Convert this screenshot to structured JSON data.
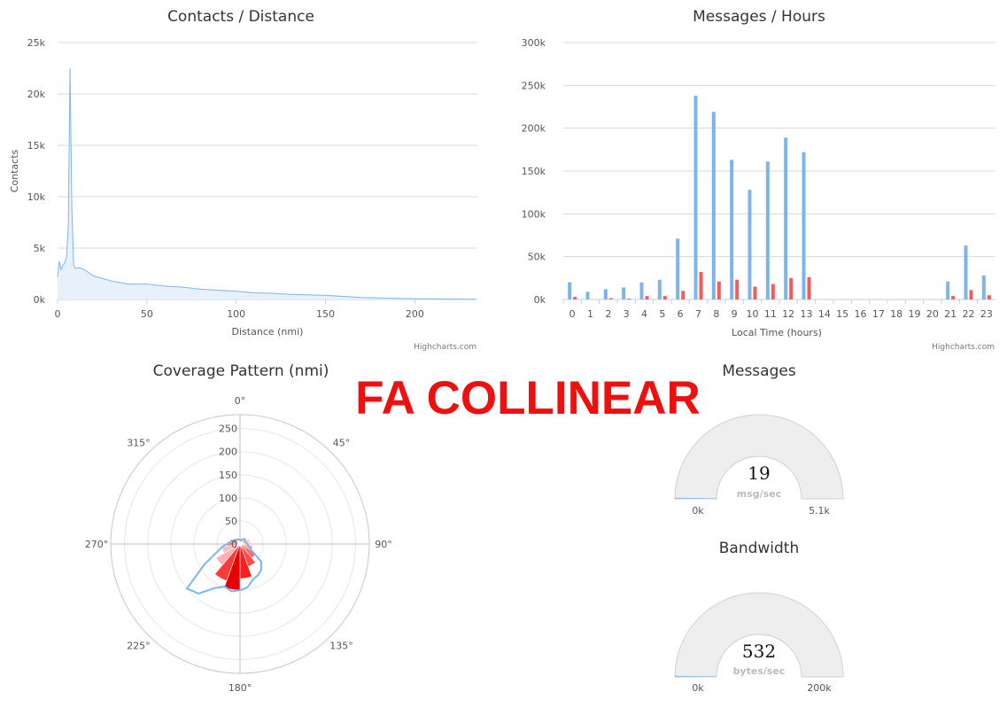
{
  "overlay": {
    "title": "FA COLLINEAR"
  },
  "credits": {
    "left": "Highcharts.com",
    "right": "Highcharts.com"
  },
  "chart_data": [
    {
      "id": "contacts",
      "type": "area",
      "title": "Contacts / Distance",
      "xlabel": "Distance (nmi)",
      "ylabel": "Contacts",
      "xlim": [
        0,
        235
      ],
      "ylim": [
        0,
        25000
      ],
      "x_ticks": [
        0,
        50,
        100,
        150,
        200
      ],
      "y_ticks": [
        0,
        5000,
        10000,
        15000,
        20000,
        25000
      ],
      "x_tick_labels": [
        "0",
        "50",
        "100",
        "150",
        "200"
      ],
      "y_tick_labels": [
        "0k",
        "5k",
        "10k",
        "15k",
        "20k",
        "25k"
      ],
      "grid": true,
      "color": "#7cb5ec",
      "x": [
        0,
        1,
        2,
        3,
        4,
        5,
        6,
        7,
        8,
        9,
        10,
        12,
        15,
        20,
        30,
        40,
        50,
        60,
        70,
        80,
        90,
        100,
        110,
        120,
        130,
        140,
        150,
        160,
        170,
        180,
        190,
        200,
        210,
        220,
        230,
        234
      ],
      "y": [
        2200,
        3700,
        2900,
        3300,
        3600,
        4100,
        7000,
        22500,
        9000,
        3300,
        3000,
        3100,
        2900,
        2300,
        1800,
        1500,
        1500,
        1300,
        1200,
        1000,
        900,
        800,
        650,
        600,
        500,
        450,
        400,
        300,
        200,
        150,
        100,
        80,
        60,
        40,
        30,
        20
      ]
    },
    {
      "id": "messages-hours",
      "type": "bar",
      "title": "Messages / Hours",
      "xlabel": "Local Time (hours)",
      "ylabel": "",
      "categories": [
        "0",
        "1",
        "2",
        "3",
        "4",
        "5",
        "6",
        "7",
        "8",
        "9",
        "10",
        "11",
        "12",
        "13",
        "14",
        "15",
        "16",
        "17",
        "18",
        "19",
        "20",
        "21",
        "22",
        "23"
      ],
      "ylim": [
        0,
        300000
      ],
      "y_ticks": [
        0,
        50000,
        100000,
        150000,
        200000,
        250000,
        300000
      ],
      "y_tick_labels": [
        "0k",
        "50k",
        "100k",
        "150k",
        "200k",
        "250k",
        "300k"
      ],
      "grid": true,
      "series": [
        {
          "color": "#7cb5ec",
          "values": [
            20000,
            9000,
            12000,
            14000,
            20000,
            23000,
            71000,
            238000,
            219000,
            163000,
            128000,
            161000,
            189000,
            172000,
            0,
            0,
            0,
            0,
            0,
            0,
            0,
            21000,
            63000,
            28000
          ]
        },
        {
          "color": "#f45b5b",
          "values": [
            3000,
            0,
            1500,
            1000,
            4000,
            4000,
            10000,
            32000,
            21000,
            23000,
            15000,
            18000,
            25000,
            26000,
            0,
            0,
            0,
            0,
            0,
            0,
            0,
            4000,
            11000,
            5000
          ]
        }
      ]
    },
    {
      "id": "coverage",
      "type": "polar",
      "title": "Coverage Pattern (nmi)",
      "angle_labels": [
        "0°",
        "45°",
        "90°",
        "135°",
        "180°",
        "225°",
        "270°",
        "315°"
      ],
      "r_ticks": [
        0,
        50,
        100,
        150,
        200,
        250
      ],
      "r_tick_labels": [
        "0",
        "50",
        "100",
        "150",
        "200",
        "250"
      ],
      "rlim": [
        0,
        280
      ],
      "outline": {
        "color": "#7cb5ec",
        "angles": [
          0,
          10,
          20,
          30,
          40,
          50,
          60,
          70,
          80,
          90,
          100,
          110,
          120,
          130,
          140,
          150,
          160,
          170,
          180,
          190,
          200,
          210,
          220,
          230,
          240,
          250,
          260,
          270,
          280,
          290,
          300,
          310,
          320,
          330,
          340,
          350
        ],
        "r": [
          10,
          8,
          10,
          12,
          14,
          14,
          12,
          12,
          14,
          16,
          18,
          22,
          30,
          60,
          72,
          78,
          82,
          95,
          100,
          104,
          98,
          110,
          140,
          150,
          90,
          55,
          40,
          28,
          22,
          18,
          16,
          14,
          12,
          12,
          10,
          10
        ]
      },
      "sectors": [
        {
          "start": 340,
          "end": 360,
          "r": 6,
          "color": "#ffd9d9"
        },
        {
          "start": 0,
          "end": 20,
          "r": 10,
          "color": "#ffcccc"
        },
        {
          "start": 20,
          "end": 40,
          "r": 14,
          "color": "#ffbfbf"
        },
        {
          "start": 40,
          "end": 60,
          "r": 18,
          "color": "#ffb3b3"
        },
        {
          "start": 60,
          "end": 80,
          "r": 22,
          "color": "#ffc6c6"
        },
        {
          "start": 80,
          "end": 100,
          "r": 26,
          "color": "#ffd0d0"
        },
        {
          "start": 100,
          "end": 120,
          "r": 28,
          "color": "#ff9f9f"
        },
        {
          "start": 120,
          "end": 140,
          "r": 40,
          "color": "#ff6b6b"
        },
        {
          "start": 140,
          "end": 160,
          "r": 52,
          "color": "#ff4a4a"
        },
        {
          "start": 160,
          "end": 180,
          "r": 75,
          "color": "#ff1e1e"
        },
        {
          "start": 180,
          "end": 200,
          "r": 100,
          "color": "#e80000"
        },
        {
          "start": 200,
          "end": 220,
          "r": 85,
          "color": "#ff3a3a"
        },
        {
          "start": 220,
          "end": 240,
          "r": 60,
          "color": "#ffb0b0"
        },
        {
          "start": 240,
          "end": 260,
          "r": 40,
          "color": "#ffbcbc"
        },
        {
          "start": 260,
          "end": 280,
          "r": 28,
          "color": "#ff8080"
        },
        {
          "start": 280,
          "end": 300,
          "r": 22,
          "color": "#ff5a5a"
        },
        {
          "start": 300,
          "end": 320,
          "r": 14,
          "color": "#ff9a9a"
        },
        {
          "start": 320,
          "end": 340,
          "r": 10,
          "color": "#ffd2d2"
        }
      ]
    },
    {
      "id": "messages-gauge",
      "type": "gauge",
      "title": "Messages",
      "value": 19,
      "value_label": "19",
      "unit": "msg/sec",
      "min": 0,
      "max": 5100,
      "min_label": "0k",
      "max_label": "5.1k",
      "color": "#eeeeee"
    },
    {
      "id": "bandwidth-gauge",
      "type": "gauge",
      "title": "Bandwidth",
      "value": 532,
      "value_label": "532",
      "unit": "bytes/sec",
      "min": 0,
      "max": 200000,
      "min_label": "0k",
      "max_label": "200k",
      "color": "#eeeeee"
    }
  ]
}
